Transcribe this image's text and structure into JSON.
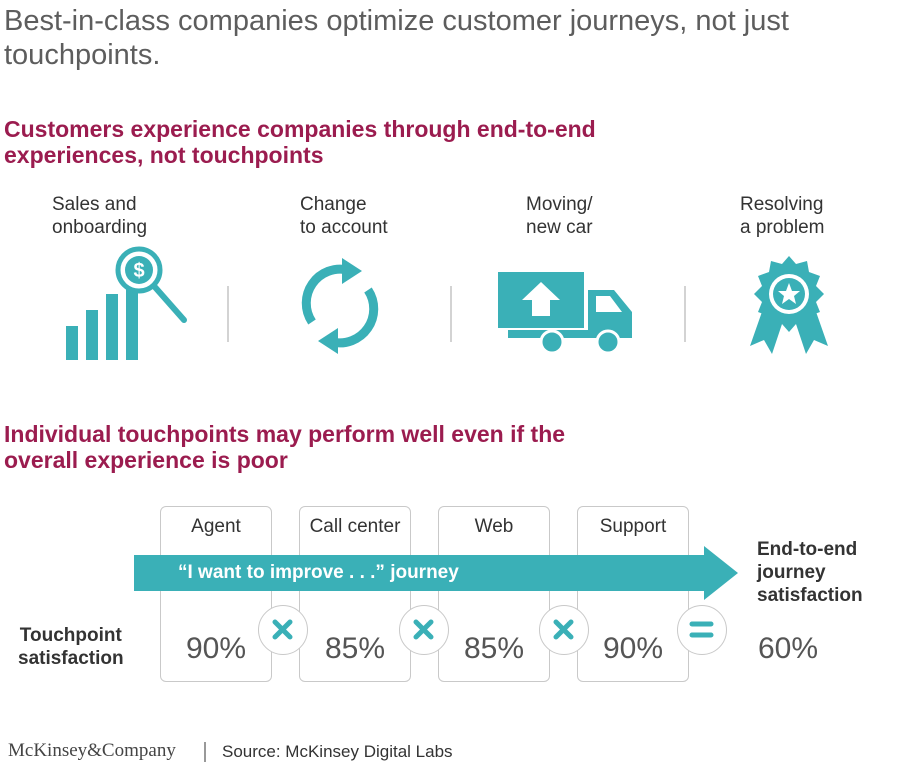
{
  "title": "Best-in-class companies optimize customer journeys, not just touchpoints.",
  "section1": {
    "heading": "Customers experience companies through end-to-end experiences, not touchpoints",
    "stages": [
      {
        "line1": "Sales and",
        "line2": "onboarding",
        "icon": "sales-growth-dollar-magnifier-icon"
      },
      {
        "line1": "Change",
        "line2": "to account",
        "icon": "refresh-cycle-icon"
      },
      {
        "line1": "Moving/",
        "line2": "new car",
        "icon": "moving-truck-icon"
      },
      {
        "line1": "Resolving",
        "line2": "a problem",
        "icon": "award-ribbon-star-icon"
      }
    ]
  },
  "section2": {
    "heading": "Individual touchpoints may perform well even if the overall experience is poor",
    "journey_label": "“I want to improve . . .” journey",
    "row_label_line1": "Touchpoint",
    "row_label_line2": "satisfaction",
    "touchpoints": [
      {
        "name": "Agent",
        "pct": "90%"
      },
      {
        "name": "Call center",
        "pct": "85%"
      },
      {
        "name": "Web",
        "pct": "85%"
      },
      {
        "name": "Support",
        "pct": "90%"
      }
    ],
    "operators": [
      "multiply",
      "multiply",
      "multiply",
      "equals"
    ],
    "result_label_line1": "End-to-end",
    "result_label_line2": "journey",
    "result_label_line3": "satisfaction",
    "result_pct": "60%"
  },
  "footer": {
    "brand": "McKinsey&Company",
    "source": "Source: McKinsey Digital Labs"
  },
  "colors": {
    "teal": "#3ab0b7",
    "crimson": "#9b1c4f",
    "gray_text": "#5d5d5d"
  }
}
